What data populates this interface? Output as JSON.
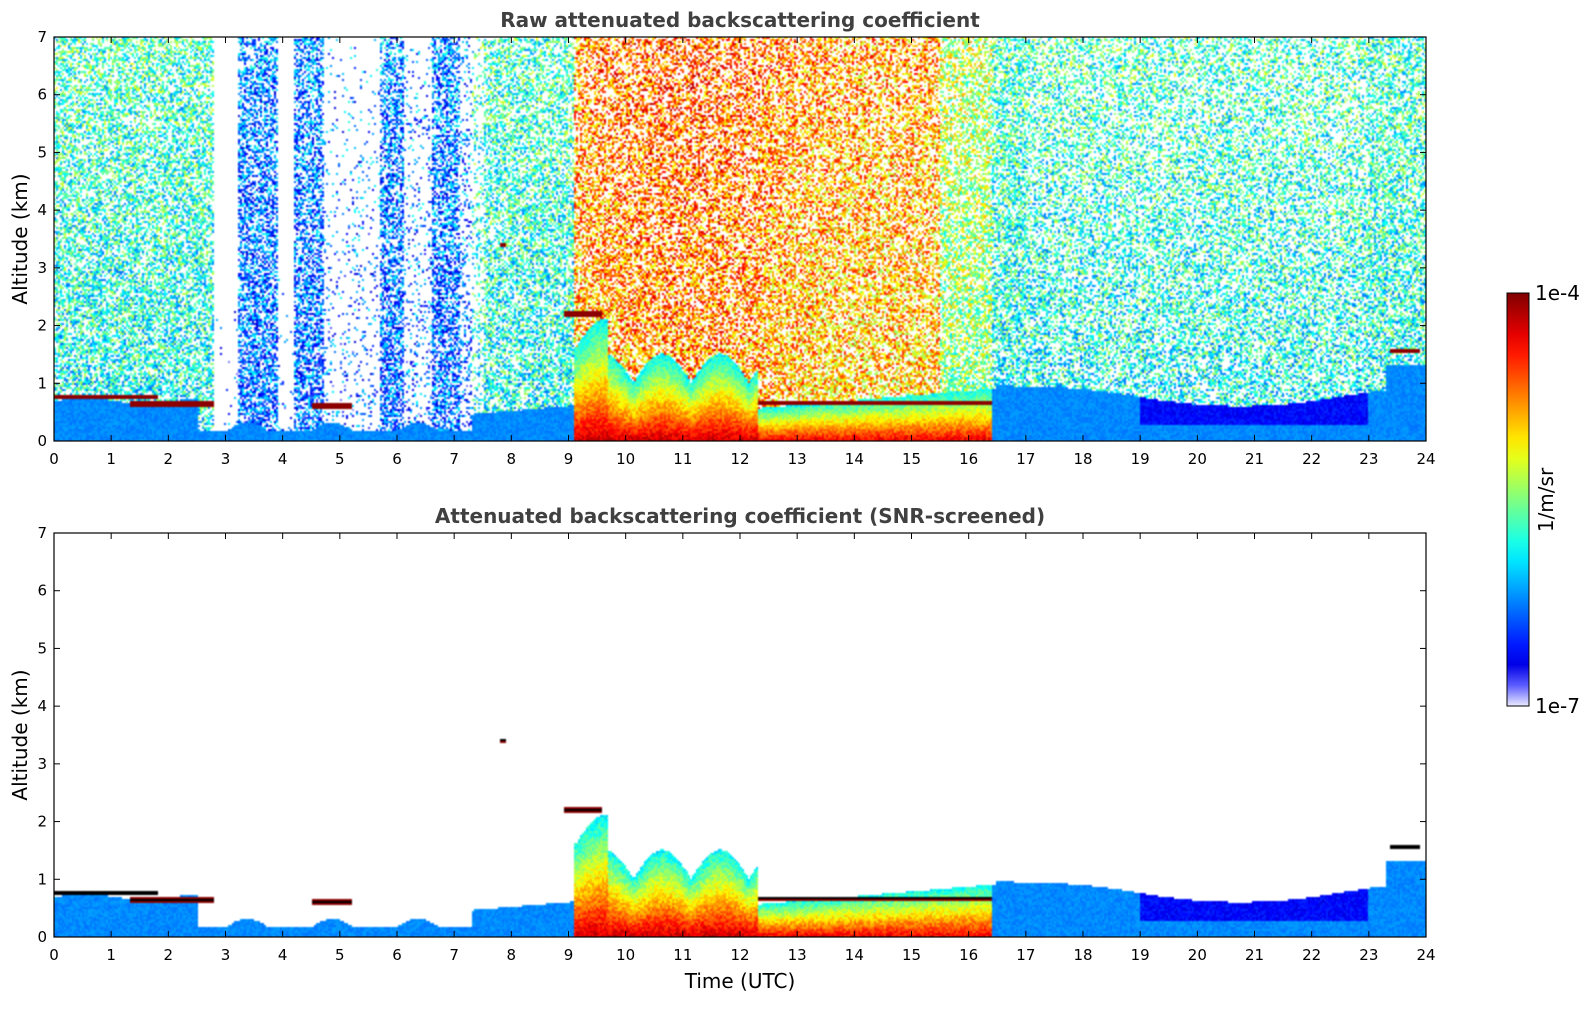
{
  "chart_data": [
    {
      "type": "heatmap",
      "title": "Raw attenuated backscattering coefficient",
      "ylabel": "Altitude (km)",
      "xlabel": "",
      "xlim": [
        0,
        24
      ],
      "ylim": [
        0,
        7
      ],
      "xticks": [
        "0",
        "1",
        "2",
        "3",
        "4",
        "5",
        "6",
        "7",
        "8",
        "9",
        "10",
        "11",
        "12",
        "13",
        "14",
        "15",
        "16",
        "17",
        "18",
        "19",
        "20",
        "21",
        "22",
        "23",
        "24"
      ],
      "yticks": [
        "0",
        "1",
        "2",
        "3",
        "4",
        "5",
        "6",
        "7"
      ],
      "screened": false,
      "features": {
        "cloud_layers": [
          {
            "t_start": 0.0,
            "t_end": 1.8,
            "alt_km": 0.75
          },
          {
            "t_start": 1.3,
            "t_end": 2.8,
            "alt_km": 0.62
          },
          {
            "t_start": 4.5,
            "t_end": 5.2,
            "alt_km": 0.6
          },
          {
            "t_start": 12.3,
            "t_end": 16.4,
            "alt_km": 0.65
          },
          {
            "t_start": 8.9,
            "t_end": 9.6,
            "alt_km": 2.2
          },
          {
            "t_start": 7.8,
            "t_end": 7.9,
            "alt_km": 3.4
          },
          {
            "t_start": 23.4,
            "t_end": 23.9,
            "alt_km": 1.55
          }
        ],
        "boundary_layer_peak": {
          "t_start": 9.1,
          "t_end": 16.4,
          "top_km": 1.6
        }
      }
    },
    {
      "type": "heatmap",
      "title": "Attenuated backscattering coefficient (SNR-screened)",
      "ylabel": "Altitude (km)",
      "xlabel": "Time (UTC)",
      "xlim": [
        0,
        24
      ],
      "ylim": [
        0,
        7
      ],
      "xticks": [
        "0",
        "1",
        "2",
        "3",
        "4",
        "5",
        "6",
        "7",
        "8",
        "9",
        "10",
        "11",
        "12",
        "13",
        "14",
        "15",
        "16",
        "17",
        "18",
        "19",
        "20",
        "21",
        "22",
        "23",
        "24"
      ],
      "yticks": [
        "0",
        "1",
        "2",
        "3",
        "4",
        "5",
        "6",
        "7"
      ],
      "screened": true
    }
  ],
  "colorbar": {
    "max_label": "1e-4",
    "min_label": "1e-7",
    "unit_label": "1/m/sr",
    "log_min": -7,
    "log_max": -4,
    "colormap": "jet"
  }
}
